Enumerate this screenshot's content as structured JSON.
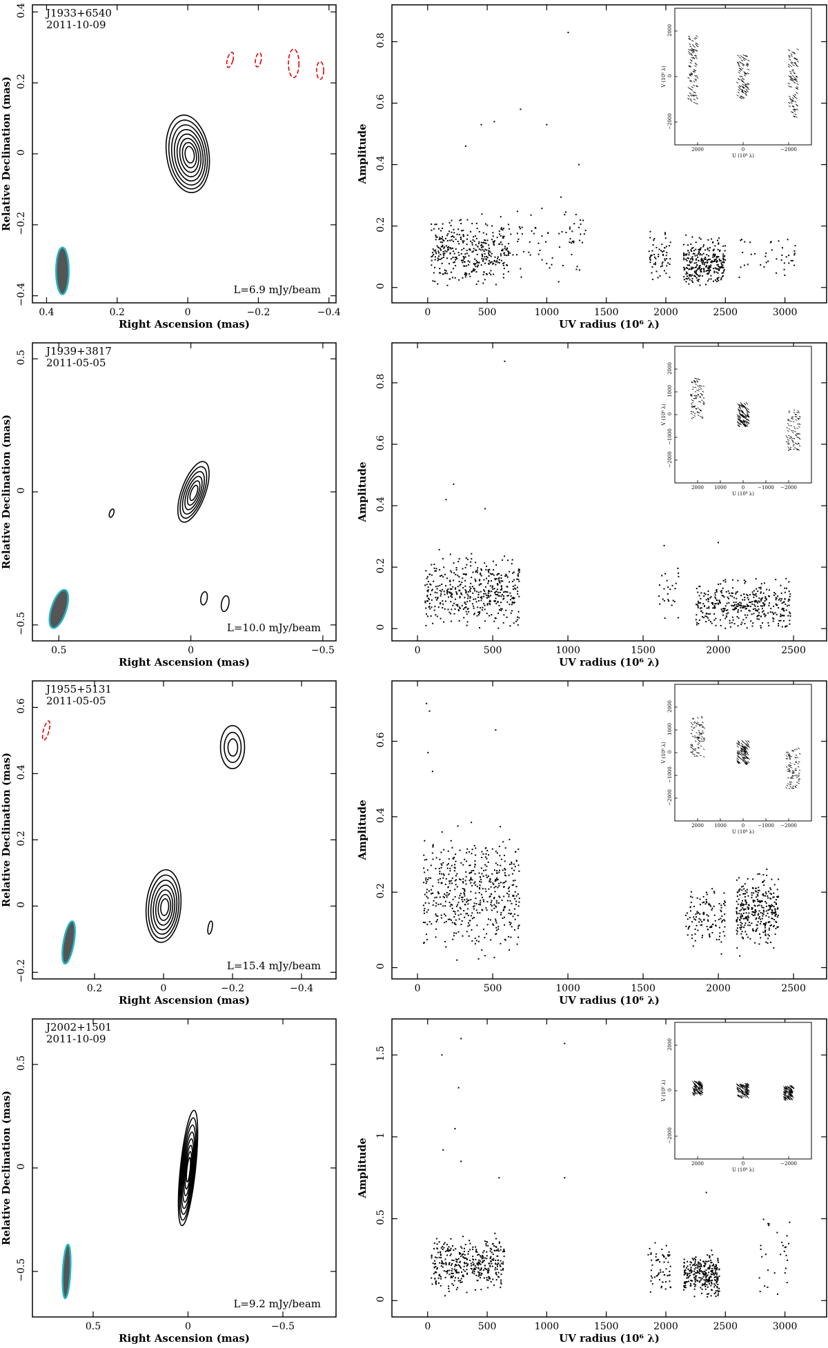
{
  "figure": {
    "rows": [
      {
        "source": "J1933+6540",
        "date": "2011-10-09",
        "level": "L=6.9 mJy/beam",
        "map": {
          "xlabel": "Right Ascension  (mas)",
          "ylabel": "Relative Declination  (mas)",
          "xlim": [
            0.44,
            -0.42
          ],
          "ylim": [
            -0.42,
            0.42
          ],
          "xticks": [
            0.4,
            0.2,
            0,
            -0.2,
            -0.4
          ],
          "yticks": [
            -0.4,
            -0.2,
            0,
            0.2,
            0.4
          ],
          "components": [
            {
              "x": 0.0,
              "y": 0.0,
              "rx": 0.06,
              "ry": 0.11,
              "angle": -8,
              "levels": 8,
              "color": "black"
            },
            {
              "x": -0.12,
              "y": 0.265,
              "rx": 0.008,
              "ry": 0.022,
              "angle": 15,
              "levels": 1,
              "color": "red"
            },
            {
              "x": -0.2,
              "y": 0.265,
              "rx": 0.008,
              "ry": 0.02,
              "angle": 10,
              "levels": 1,
              "color": "red"
            },
            {
              "x": -0.3,
              "y": 0.255,
              "rx": 0.015,
              "ry": 0.04,
              "angle": 0,
              "levels": 1,
              "color": "red"
            },
            {
              "x": -0.375,
              "y": 0.235,
              "rx": 0.01,
              "ry": 0.025,
              "angle": 0,
              "levels": 1,
              "color": "red"
            }
          ],
          "beam": {
            "x": 0.355,
            "y": -0.33,
            "rx": 0.018,
            "ry": 0.066,
            "angle": 0
          }
        },
        "uv": {
          "xlabel": "UV radius  (10⁶ λ)",
          "ylabel": "Amplitude",
          "xlim": [
            -300,
            3350
          ],
          "ylim": [
            -0.05,
            0.92
          ],
          "xticks": [
            0,
            500,
            1000,
            1500,
            2000,
            2500,
            3000
          ],
          "yticks": [
            0,
            0.2,
            0.4,
            0.6,
            0.8
          ],
          "clusters": [
            {
              "x0": 30,
              "x1": 680,
              "n": 380,
              "base": 0.12,
              "spread": 0.07
            },
            {
              "x0": 680,
              "x1": 1350,
              "n": 70,
              "base": 0.16,
              "spread": 0.09
            },
            {
              "x0": 1850,
              "x1": 2050,
              "n": 60,
              "base": 0.1,
              "spread": 0.05
            },
            {
              "x0": 2150,
              "x1": 2500,
              "n": 300,
              "base": 0.08,
              "spread": 0.05
            },
            {
              "x0": 2600,
              "x1": 3100,
              "n": 40,
              "base": 0.1,
              "spread": 0.05
            }
          ],
          "outliers": [
            [
              1180,
              0.83
            ],
            [
              780,
              0.58
            ],
            [
              1000,
              0.53
            ],
            [
              560,
              0.54
            ],
            [
              450,
              0.53
            ],
            [
              320,
              0.46
            ],
            [
              1270,
              0.4
            ]
          ],
          "inset": {
            "xlabel": "U (10⁶ λ)",
            "ylabel": "V (10⁶ λ)",
            "xlim": [
              3000,
              -3000
            ],
            "ylim": [
              -3000,
              3000
            ],
            "xticks": [
              2000,
              0,
              -2000
            ],
            "yticks": [
              -2000,
              0,
              2000
            ],
            "tracks": [
              [
                2200,
                300,
                400,
                1500,
                22
              ],
              [
                0,
                0,
                500,
                1000,
                22
              ],
              [
                -2200,
                -300,
                400,
                1500,
                22
              ]
            ]
          }
        }
      },
      {
        "source": "J1939+3817",
        "date": "2011-05-05",
        "level": "L=10.0 mJy/beam",
        "map": {
          "xlabel": "Right Ascension  (mas)",
          "ylabel": "Relative Declination  (mas)",
          "xlim": [
            0.6,
            -0.55
          ],
          "ylim": [
            -0.56,
            0.56
          ],
          "xticks": [
            0.5,
            0,
            -0.5
          ],
          "yticks": [
            -0.5,
            0,
            0.5
          ],
          "components": [
            {
              "x": -0.01,
              "y": 0.0,
              "rx": 0.045,
              "ry": 0.12,
              "angle": 20,
              "levels": 6,
              "color": "black"
            },
            {
              "x": 0.3,
              "y": -0.08,
              "rx": 0.008,
              "ry": 0.016,
              "angle": 20,
              "levels": 1,
              "color": "black"
            },
            {
              "x": -0.05,
              "y": -0.4,
              "rx": 0.012,
              "ry": 0.025,
              "angle": 10,
              "levels": 1,
              "color": "black"
            },
            {
              "x": -0.13,
              "y": -0.42,
              "rx": 0.014,
              "ry": 0.03,
              "angle": 10,
              "levels": 1,
              "color": "black"
            }
          ],
          "beam": {
            "x": 0.5,
            "y": -0.44,
            "rx": 0.028,
            "ry": 0.075,
            "angle": 18
          }
        },
        "uv": {
          "xlabel": "UV radius  (10⁶ λ)",
          "ylabel": "Amplitude",
          "xlim": [
            -170,
            2720
          ],
          "ylim": [
            -0.04,
            0.93
          ],
          "xticks": [
            0,
            500,
            1000,
            1500,
            2000,
            2500
          ],
          "yticks": [
            0,
            0.2,
            0.4,
            0.6,
            0.8
          ],
          "clusters": [
            {
              "x0": 50,
              "x1": 680,
              "n": 450,
              "base": 0.12,
              "spread": 0.07
            },
            {
              "x0": 1600,
              "x1": 1750,
              "n": 25,
              "base": 0.12,
              "spread": 0.06
            },
            {
              "x0": 1850,
              "x1": 2480,
              "n": 380,
              "base": 0.08,
              "spread": 0.05
            }
          ],
          "outliers": [
            [
              580,
              0.87
            ],
            [
              240,
              0.47
            ],
            [
              190,
              0.42
            ],
            [
              450,
              0.39
            ],
            [
              2000,
              0.28
            ],
            [
              1640,
              0.27
            ]
          ],
          "inset": {
            "xlabel": "U (10⁶ λ)",
            "ylabel": "V (10⁶ λ)",
            "xlim": [
              3000,
              -3000
            ],
            "ylim": [
              -3000,
              3000
            ],
            "xticks": [
              2000,
              1000,
              0,
              -1000,
              -2000
            ],
            "yticks": [
              -2000,
              -1000,
              0,
              1000,
              2000
            ],
            "tracks": [
              [
                2000,
                700,
                600,
                900,
                40
              ],
              [
                0,
                0,
                500,
                500,
                0
              ],
              [
                -2200,
                -700,
                600,
                900,
                40
              ]
            ]
          }
        }
      },
      {
        "source": "J1955+5131",
        "date": "2011-05-05",
        "level": "L=15.4 mJy/beam",
        "map": {
          "xlabel": "Right Ascension  (mas)",
          "ylabel": "Relative Declination  (mas)",
          "xlim": [
            0.38,
            -0.5
          ],
          "ylim": [
            -0.22,
            0.68
          ],
          "xticks": [
            0.2,
            0,
            -0.2,
            -0.4
          ],
          "yticks": [
            -0.2,
            0,
            0.2,
            0.4,
            0.6
          ],
          "components": [
            {
              "x": 0.0,
              "y": 0.0,
              "rx": 0.05,
              "ry": 0.11,
              "angle": 5,
              "levels": 7,
              "color": "black"
            },
            {
              "x": -0.2,
              "y": 0.48,
              "rx": 0.035,
              "ry": 0.065,
              "angle": 0,
              "levels": 3,
              "color": "black"
            },
            {
              "x": -0.135,
              "y": -0.065,
              "rx": 0.006,
              "ry": 0.02,
              "angle": 10,
              "levels": 1,
              "color": "black"
            },
            {
              "x": 0.34,
              "y": 0.53,
              "rx": 0.008,
              "ry": 0.03,
              "angle": 15,
              "levels": 1,
              "color": "red"
            }
          ],
          "beam": {
            "x": 0.275,
            "y": -0.11,
            "rx": 0.015,
            "ry": 0.065,
            "angle": 10
          }
        },
        "uv": {
          "xlabel": "UV radius  (10⁶ λ)",
          "ylabel": "Amplitude",
          "xlim": [
            -170,
            2720
          ],
          "ylim": [
            -0.03,
            0.76
          ],
          "xticks": [
            0,
            500,
            1000,
            1500,
            2000,
            2500
          ],
          "yticks": [
            0,
            0.2,
            0.4,
            0.6
          ],
          "clusters": [
            {
              "x0": 40,
              "x1": 680,
              "n": 520,
              "base": 0.2,
              "spread": 0.1
            },
            {
              "x0": 1780,
              "x1": 2050,
              "n": 120,
              "base": 0.13,
              "spread": 0.05
            },
            {
              "x0": 2120,
              "x1": 2400,
              "n": 320,
              "base": 0.15,
              "spread": 0.06
            }
          ],
          "outliers": [
            [
              60,
              0.7
            ],
            [
              80,
              0.68
            ],
            [
              520,
              0.63
            ],
            [
              70,
              0.57
            ],
            [
              100,
              0.52
            ]
          ],
          "inset": {
            "xlabel": "U (10⁶ λ)",
            "ylabel": "V (10⁶ λ)",
            "xlim": [
              3000,
              -3000
            ],
            "ylim": [
              -3000,
              3000
            ],
            "xticks": [
              2000,
              1000,
              0,
              -1000,
              -2000
            ],
            "yticks": [
              -2000,
              -1000,
              0,
              1000,
              2000
            ],
            "tracks": [
              [
                2000,
                700,
                600,
                900,
                40
              ],
              [
                0,
                0,
                500,
                500,
                0
              ],
              [
                -2200,
                -700,
                600,
                900,
                40
              ]
            ]
          }
        }
      },
      {
        "source": "J2002+1501",
        "date": "2011-10-09",
        "level": "L=9.2 mJy/beam",
        "map": {
          "xlabel": "Right Ascension  (mas)",
          "ylabel": "Relative Declination  (mas)",
          "xlim": [
            0.82,
            -0.78
          ],
          "ylim": [
            -0.72,
            0.72
          ],
          "xticks": [
            0.5,
            0,
            -0.5
          ],
          "yticks": [
            -0.5,
            0,
            0.5
          ],
          "components": [
            {
              "x": 0.0,
              "y": 0.0,
              "rx": 0.04,
              "ry": 0.28,
              "angle": 6,
              "levels": 8,
              "color": "black"
            }
          ],
          "beam": {
            "x": 0.64,
            "y": -0.5,
            "rx": 0.02,
            "ry": 0.13,
            "angle": 3
          }
        },
        "uv": {
          "xlabel": "UV radius  (10⁶ λ)",
          "ylabel": "Amplitude",
          "xlim": [
            -300,
            3350
          ],
          "ylim": [
            -0.1,
            1.72
          ],
          "xticks": [
            0,
            500,
            1000,
            1500,
            2000,
            2500,
            3000
          ],
          "yticks": [
            0,
            0.5,
            1,
            1.5
          ],
          "clusters": [
            {
              "x0": 30,
              "x1": 650,
              "n": 380,
              "base": 0.22,
              "spread": 0.1
            },
            {
              "x0": 1850,
              "x1": 2050,
              "n": 60,
              "base": 0.2,
              "spread": 0.1
            },
            {
              "x0": 2150,
              "x1": 2450,
              "n": 280,
              "base": 0.16,
              "spread": 0.08
            },
            {
              "x0": 2780,
              "x1": 3050,
              "n": 30,
              "base": 0.3,
              "spread": 0.2
            }
          ],
          "outliers": [
            [
              280,
              1.6
            ],
            [
              1150,
              1.57
            ],
            [
              120,
              1.5
            ],
            [
              260,
              1.3
            ],
            [
              230,
              1.05
            ],
            [
              130,
              0.92
            ],
            [
              280,
              0.85
            ],
            [
              600,
              0.75
            ],
            [
              1150,
              0.75
            ],
            [
              2340,
              0.66
            ]
          ],
          "inset": {
            "xlabel": "U (10⁶ λ)",
            "ylabel": "V (10⁶ λ)",
            "xlim": [
              3000,
              -3000
            ],
            "ylim": [
              -3000,
              3000
            ],
            "xticks": [
              2000,
              0,
              -2000
            ],
            "yticks": [
              -2000,
              0,
              2000
            ],
            "tracks": [
              [
                2000,
                100,
                400,
                300,
                0
              ],
              [
                0,
                0,
                500,
                300,
                0
              ],
              [
                -2000,
                -100,
                400,
                300,
                0
              ]
            ]
          }
        }
      }
    ]
  }
}
